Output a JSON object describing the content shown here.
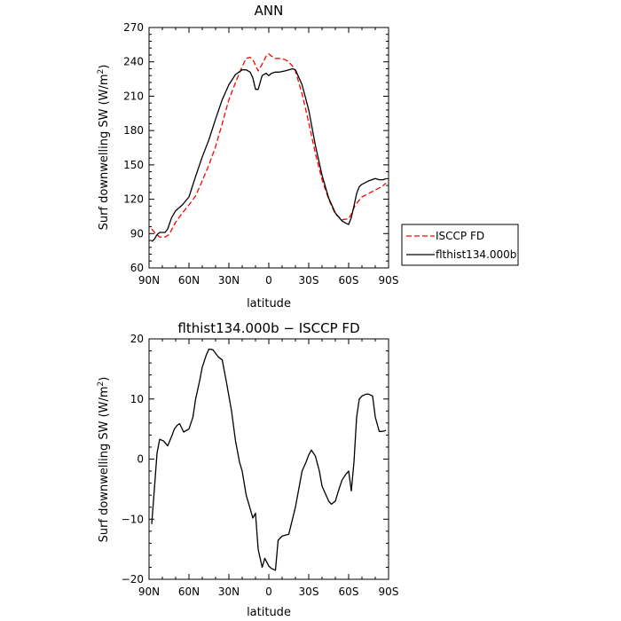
{
  "chart_data": [
    {
      "type": "line",
      "title": "ANN",
      "xlabel": "latitude",
      "ylabel": "Surf downwelling SW (W/m²)",
      "ylabel_base": "Surf downwelling SW (W/m",
      "ylabel_sup": "2",
      "ylabel_end": ")",
      "xlim": [
        90,
        -90
      ],
      "ylim": [
        60,
        270
      ],
      "xticks": [
        90,
        60,
        30,
        0,
        -30,
        -60,
        -90
      ],
      "xtick_labels": [
        "90N",
        "60N",
        "30N",
        "0",
        "30S",
        "60S",
        "90S"
      ],
      "yticks": [
        60,
        90,
        120,
        150,
        180,
        210,
        240,
        270
      ],
      "ytick_labels": [
        "60",
        "90",
        "120",
        "150",
        "180",
        "210",
        "240",
        "270"
      ],
      "legend": "right",
      "series": [
        {
          "name": "ISCCP FD",
          "color": "#ff0000",
          "dash": "dashed",
          "x": [
            88,
            85,
            82,
            78,
            75,
            70,
            65,
            60,
            55,
            50,
            45,
            40,
            35,
            30,
            25,
            20,
            17,
            14,
            12,
            8,
            5,
            2,
            0,
            -2,
            -5,
            -8,
            -12,
            -15,
            -18,
            -20,
            -25,
            -30,
            -35,
            -40,
            -45,
            -50,
            -55,
            -60,
            -62,
            -65,
            -70,
            -75,
            -80,
            -85,
            -88
          ],
          "y": [
            94,
            90,
            87,
            87,
            89,
            100,
            108,
            115,
            123,
            136,
            150,
            166,
            186,
            207,
            222,
            236,
            243,
            244,
            242,
            232,
            238,
            245,
            247,
            245,
            243,
            243,
            242,
            240,
            236,
            232,
            212,
            187,
            160,
            137,
            120,
            107,
            102,
            103,
            107,
            115,
            122,
            125,
            128,
            131,
            134
          ]
        },
        {
          "name": "flthist134.000b",
          "color": "#000000",
          "dash": "solid",
          "x": [
            88,
            86,
            84,
            82,
            78,
            76,
            73,
            70,
            65,
            60,
            55,
            50,
            45,
            40,
            35,
            30,
            25,
            20,
            17,
            14,
            12,
            10,
            8,
            5,
            2,
            0,
            -2,
            -5,
            -8,
            -12,
            -15,
            -18,
            -20,
            -25,
            -30,
            -35,
            -40,
            -45,
            -50,
            -55,
            -58,
            -60,
            -62,
            -64,
            -66,
            -68,
            -70,
            -75,
            -80,
            -83,
            -86,
            -88
          ],
          "y": [
            83,
            85,
            89,
            91,
            91,
            94,
            104,
            110,
            115,
            122,
            140,
            157,
            172,
            190,
            207,
            220,
            229,
            233,
            233,
            231,
            226,
            216,
            216,
            228,
            230,
            228,
            230,
            231,
            231,
            232,
            233,
            234,
            233,
            220,
            198,
            167,
            141,
            121,
            108,
            101,
            99,
            98,
            104,
            114,
            125,
            131,
            133,
            136,
            138,
            137,
            137,
            138
          ]
        }
      ]
    },
    {
      "type": "line",
      "title": "flthist134.000b − ISCCP FD",
      "xlabel": "latitude",
      "ylabel": "Surf downwelling SW (W/m²)",
      "ylabel_base": "Surf downwelling SW (W/m",
      "ylabel_sup": "2",
      "ylabel_end": ")",
      "xlim": [
        90,
        -90
      ],
      "ylim": [
        -20,
        20
      ],
      "xticks": [
        90,
        60,
        30,
        0,
        -30,
        -60,
        -90
      ],
      "xtick_labels": [
        "90N",
        "60N",
        "30N",
        "0",
        "30S",
        "60S",
        "90S"
      ],
      "yticks": [
        -20,
        -10,
        0,
        10,
        20
      ],
      "ytick_labels": [
        "−20",
        "−10",
        "0",
        "10",
        "20"
      ],
      "series": [
        {
          "color": "#000000",
          "x": [
            88,
            86,
            84,
            82,
            79,
            76,
            73,
            71,
            69,
            67,
            64,
            60,
            57,
            55,
            52,
            50,
            47,
            45,
            42,
            38,
            35,
            32,
            28,
            25,
            22,
            20,
            17,
            15,
            12,
            10,
            8,
            5,
            3,
            0,
            -2,
            -5,
            -7,
            -10,
            -15,
            -20,
            -25,
            -28,
            -30,
            -32,
            -35,
            -38,
            -40,
            -42,
            -45,
            -47,
            -50,
            -52,
            -55,
            -58,
            -60,
            -62,
            -64,
            -66,
            -68,
            -70,
            -73,
            -75,
            -78,
            -80,
            -83,
            -85,
            -87,
            -88
          ],
          "y": [
            -10.8,
            -5,
            1,
            3.3,
            3,
            2.2,
            3.8,
            5,
            5.6,
            5.9,
            4.5,
            5,
            7,
            10,
            13,
            15.3,
            17.3,
            18.3,
            18.2,
            17,
            16.5,
            13,
            8,
            3,
            -0.5,
            -2,
            -6,
            -7.5,
            -9.8,
            -9,
            -15,
            -18,
            -16.5,
            -17.8,
            -18.2,
            -18.5,
            -13.5,
            -12.8,
            -12.5,
            -8,
            -2,
            -0.5,
            0.7,
            1.5,
            0.5,
            -2,
            -4.5,
            -5.5,
            -7,
            -7.5,
            -7,
            -5.5,
            -3.5,
            -2.5,
            -2,
            -5.3,
            -0.5,
            7,
            10,
            10.5,
            10.8,
            10.8,
            10.5,
            7,
            4.6,
            4.6,
            4.7,
            4.8
          ]
        }
      ]
    }
  ]
}
